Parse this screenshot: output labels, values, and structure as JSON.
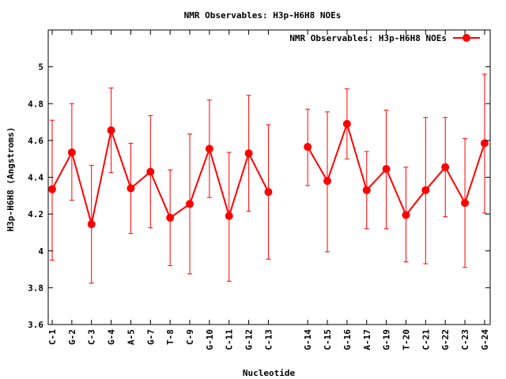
{
  "chart_data": {
    "type": "line",
    "title": "NMR Observables: H3p-H6H8 NOEs",
    "xlabel": "Nucleotide",
    "ylabel": "H3p-H6H8 (Angstroms)",
    "ylim": [
      3.6,
      5.2
    ],
    "yticks": [
      "3.6",
      "3.8",
      "4",
      "4.2",
      "4.4",
      "4.6",
      "4.8",
      "5"
    ],
    "grid": false,
    "legend_position": "top-right",
    "color": "#ff0000",
    "series": [
      {
        "name": "NMR Observables: H3p-H6H8 NOEs",
        "segments": [
          {
            "categories": [
              "C-1",
              "G-2",
              "C-3",
              "G-4",
              "A-5",
              "G-7",
              "T-8",
              "C-9",
              "G-10",
              "C-11",
              "G-12",
              "C-13"
            ],
            "values": [
              4.335,
              4.535,
              4.145,
              4.655,
              4.34,
              4.43,
              4.18,
              4.255,
              4.555,
              4.19,
              4.53,
              4.32
            ],
            "err_low": [
              3.95,
              4.275,
              3.825,
              4.425,
              4.095,
              4.125,
              3.92,
              3.875,
              4.29,
              3.835,
              4.215,
              3.955
            ],
            "err_high": [
              4.71,
              4.8,
              4.465,
              4.885,
              4.585,
              4.735,
              4.44,
              4.635,
              4.82,
              4.535,
              4.845,
              4.685
            ]
          },
          {
            "categories": [
              "G-14",
              "C-15",
              "G-16",
              "A-17",
              "G-19",
              "T-20",
              "C-21",
              "G-22",
              "C-23",
              "G-24"
            ],
            "values": [
              4.565,
              4.38,
              4.69,
              4.33,
              4.445,
              4.195,
              4.33,
              4.455,
              4.26,
              4.585
            ],
            "err_low": [
              4.355,
              3.995,
              4.5,
              4.12,
              4.12,
              3.94,
              3.93,
              4.185,
              3.91,
              4.205
            ],
            "err_high": [
              4.77,
              4.755,
              4.88,
              4.54,
              4.765,
              4.455,
              4.725,
              4.725,
              4.61,
              4.96
            ]
          }
        ]
      }
    ]
  }
}
